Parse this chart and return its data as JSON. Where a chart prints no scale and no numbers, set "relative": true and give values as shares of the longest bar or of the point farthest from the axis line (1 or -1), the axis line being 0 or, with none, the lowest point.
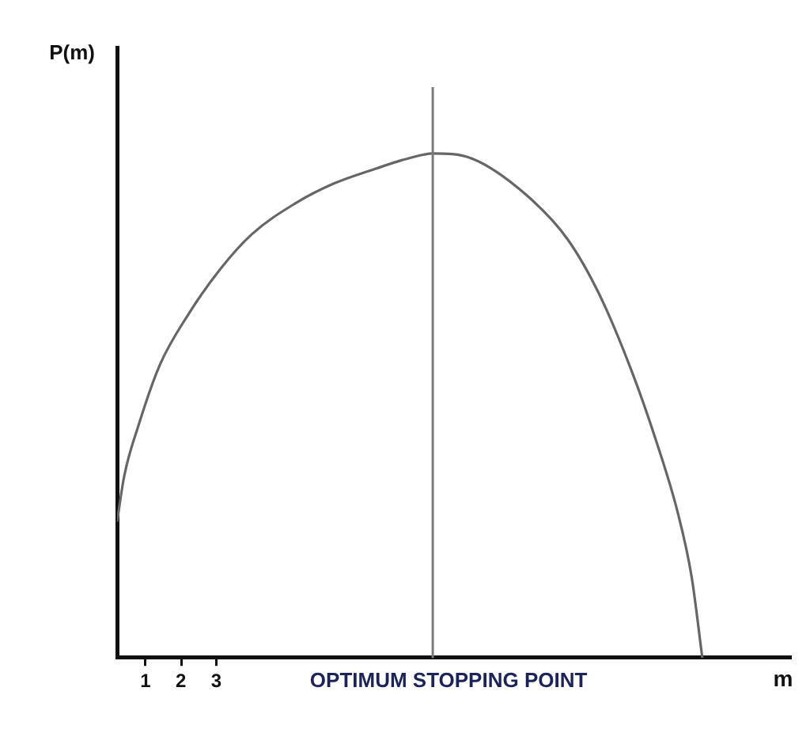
{
  "chart_data": {
    "type": "line",
    "relative": true,
    "xlabel": "m",
    "ylabel": "P(m)",
    "x": [
      0.2,
      0.4,
      0.8,
      1.4,
      2.2,
      3.1,
      4.0,
      5.2,
      6.3,
      7.5,
      8.4,
      9.1,
      10.2,
      11.7,
      12.9,
      13.8,
      14.7,
      15.4,
      16.0,
      16.4,
      16.7
    ],
    "values": [
      0.27,
      0.36,
      0.46,
      0.58,
      0.68,
      0.77,
      0.84,
      0.9,
      0.94,
      0.97,
      0.99,
      1.0,
      0.99,
      0.92,
      0.83,
      0.72,
      0.57,
      0.43,
      0.29,
      0.16,
      0
    ],
    "color": "#666666",
    "marker": "none",
    "xlim": [
      0.2,
      19.2
    ],
    "xticks": [
      1,
      2,
      3
    ],
    "ref_lines": [
      {
        "axis": "x",
        "value": 9.1,
        "label": "OPTIMUM STOPPING POINT",
        "color": "#7a7a7a"
      }
    ]
  }
}
